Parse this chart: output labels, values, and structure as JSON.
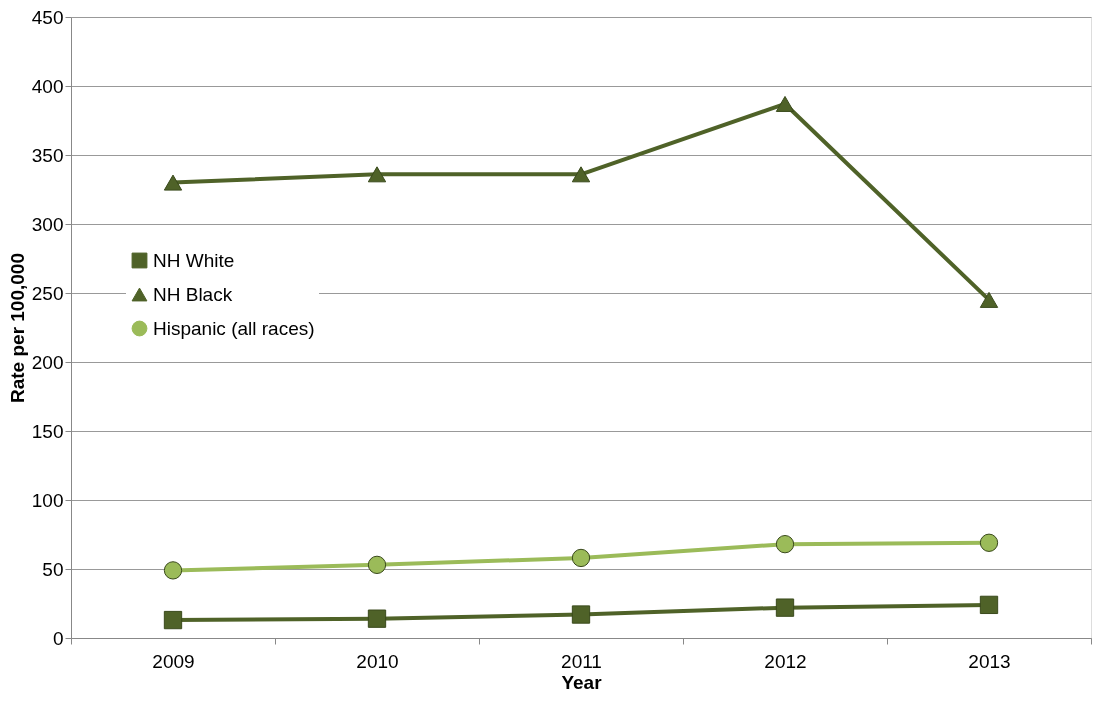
{
  "chart_data": {
    "type": "line",
    "xlabel": "Year",
    "ylabel": "Rate per 100,000",
    "categories": [
      "2009",
      "2010",
      "2011",
      "2012",
      "2013"
    ],
    "series": [
      {
        "name": "NH White",
        "color": "#4f6228",
        "marker": "square",
        "values": [
          13,
          14,
          17,
          22,
          24
        ]
      },
      {
        "name": "NH Black",
        "color": "#4f6228",
        "marker": "triangle",
        "values": [
          330,
          336,
          336,
          387,
          245
        ]
      },
      {
        "name": "Hispanic (all races)",
        "color": "#9bbb59",
        "marker": "circle",
        "values": [
          49,
          53,
          58,
          68,
          69
        ]
      }
    ],
    "ylim": [
      0,
      450
    ],
    "yticks": [
      0,
      50,
      100,
      150,
      200,
      250,
      300,
      350,
      400,
      450
    ],
    "grid": "y",
    "legend": "left",
    "line_style": "solid"
  }
}
